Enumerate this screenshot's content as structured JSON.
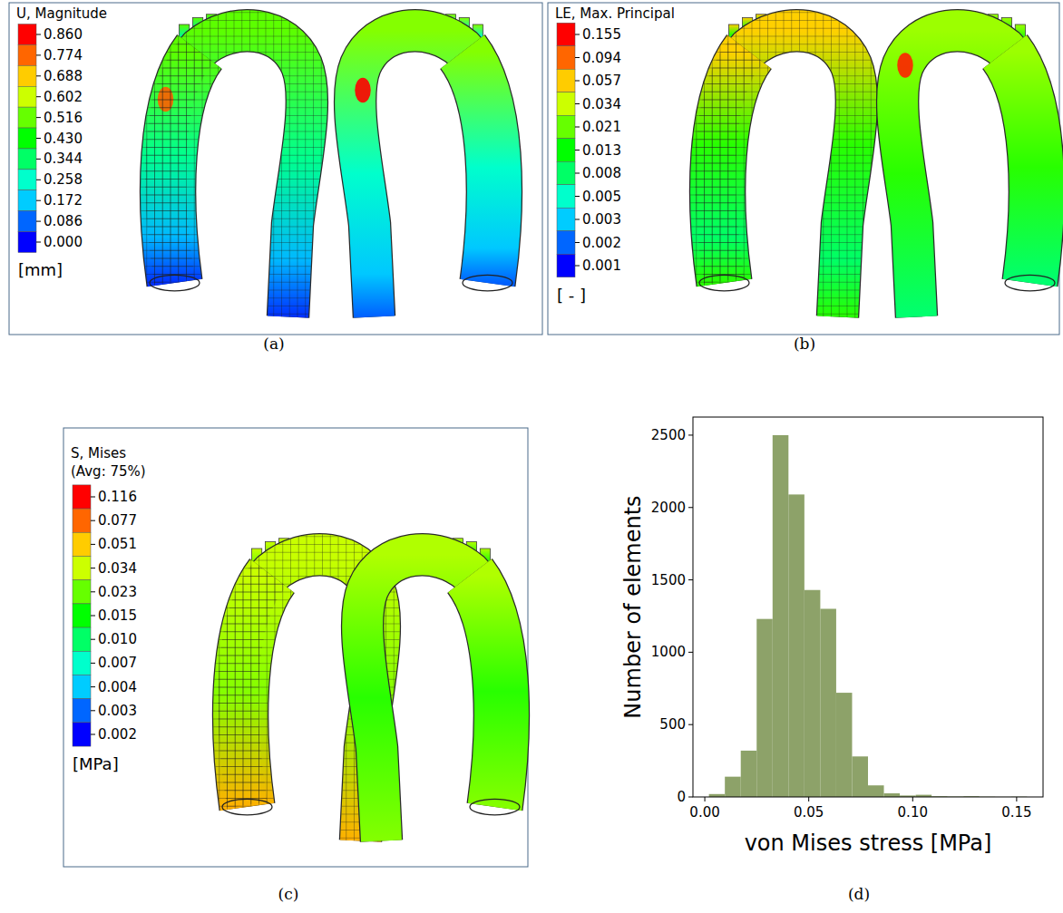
{
  "panels": [
    {
      "caption": "(a)",
      "legend_title": "U, Magnitude",
      "levels": [
        "0.860",
        "0.774",
        "0.688",
        "0.602",
        "0.516",
        "0.430",
        "0.344",
        "0.258",
        "0.172",
        "0.086",
        "0.000"
      ],
      "unit": "[mm]"
    },
    {
      "caption": "(b)",
      "legend_title": "LE, Max. Principal",
      "levels": [
        "0.155",
        "0.094",
        "0.057",
        "0.034",
        "0.021",
        "0.013",
        "0.008",
        "0.005",
        "0.003",
        "0.002",
        "0.001"
      ],
      "unit": "[ - ]"
    },
    {
      "caption": "(c)",
      "legend_title": "S, Mises",
      "legend_subtitle": "(Avg: 75%)",
      "levels": [
        "0.116",
        "0.077",
        "0.051",
        "0.034",
        "0.023",
        "0.015",
        "0.010",
        "0.007",
        "0.004",
        "0.003",
        "0.002"
      ],
      "unit": "[MPa]"
    }
  ],
  "chart_data": {
    "type": "histogram",
    "title": "(d)",
    "x_label": "von Mises stress [MPa]",
    "y_label": "Number of elements",
    "bins": [
      0.002,
      0.00965,
      0.0173,
      0.02495,
      0.0326,
      0.04025,
      0.0479,
      0.05555,
      0.0632,
      0.07085,
      0.0785,
      0.08615,
      0.0938,
      0.10145,
      0.1091,
      0.11675,
      0.1244,
      0.13205,
      0.1397,
      0.14735,
      0.155
    ],
    "values": [
      20,
      140,
      320,
      1230,
      2500,
      2090,
      1430,
      1300,
      720,
      280,
      80,
      25,
      10,
      15,
      5,
      3,
      5,
      2,
      1,
      2
    ],
    "color": "#8da269",
    "xlim": [
      -0.0057,
      0.1627
    ],
    "xticks": [
      {
        "value": 0,
        "label": "0.00"
      },
      {
        "value": 0.05,
        "label": "0.05"
      },
      {
        "value": 0.1,
        "label": "0.10"
      },
      {
        "value": 0.15,
        "label": "0.15"
      }
    ],
    "ylim": [
      0,
      2625
    ],
    "yticks": [
      0,
      500,
      1000,
      1500,
      2000,
      2500
    ],
    "grid": false
  }
}
